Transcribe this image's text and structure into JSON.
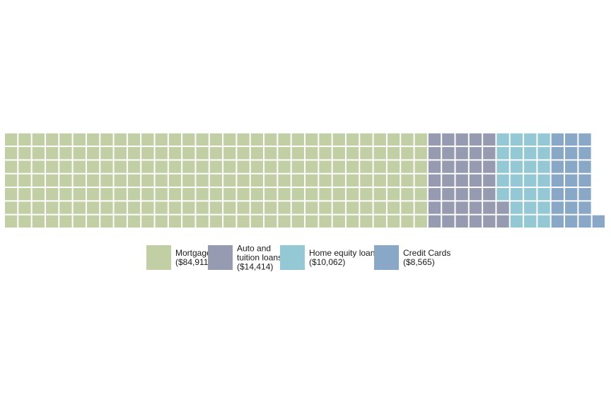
{
  "chart_data": {
    "type": "waffle",
    "rows": 7,
    "fill_order": "column-major, bottom-to-top",
    "series": [
      {
        "name": "Mortgage",
        "label_lines": [
          "Mortgage",
          "($84,911)"
        ],
        "value": 84911,
        "squares": 217,
        "color": "#c2cfa5"
      },
      {
        "name": "Auto and tuition loans",
        "label_lines": [
          "Auto and",
          "tuition loans",
          "($14,414)"
        ],
        "value": 14414,
        "squares": 37,
        "color": "#979bb2"
      },
      {
        "name": "Home equity loans",
        "label_lines": [
          "Home equity loans",
          "($10,062)"
        ],
        "value": 10062,
        "squares": 26,
        "color": "#93c8d4"
      },
      {
        "name": "Credit Cards",
        "label_lines": [
          "Credit Cards",
          "($8,565)"
        ],
        "value": 8565,
        "squares": 22,
        "color": "#89a7c6"
      }
    ],
    "legend_position": "bottom",
    "grid": false,
    "background": "#ffffff"
  }
}
